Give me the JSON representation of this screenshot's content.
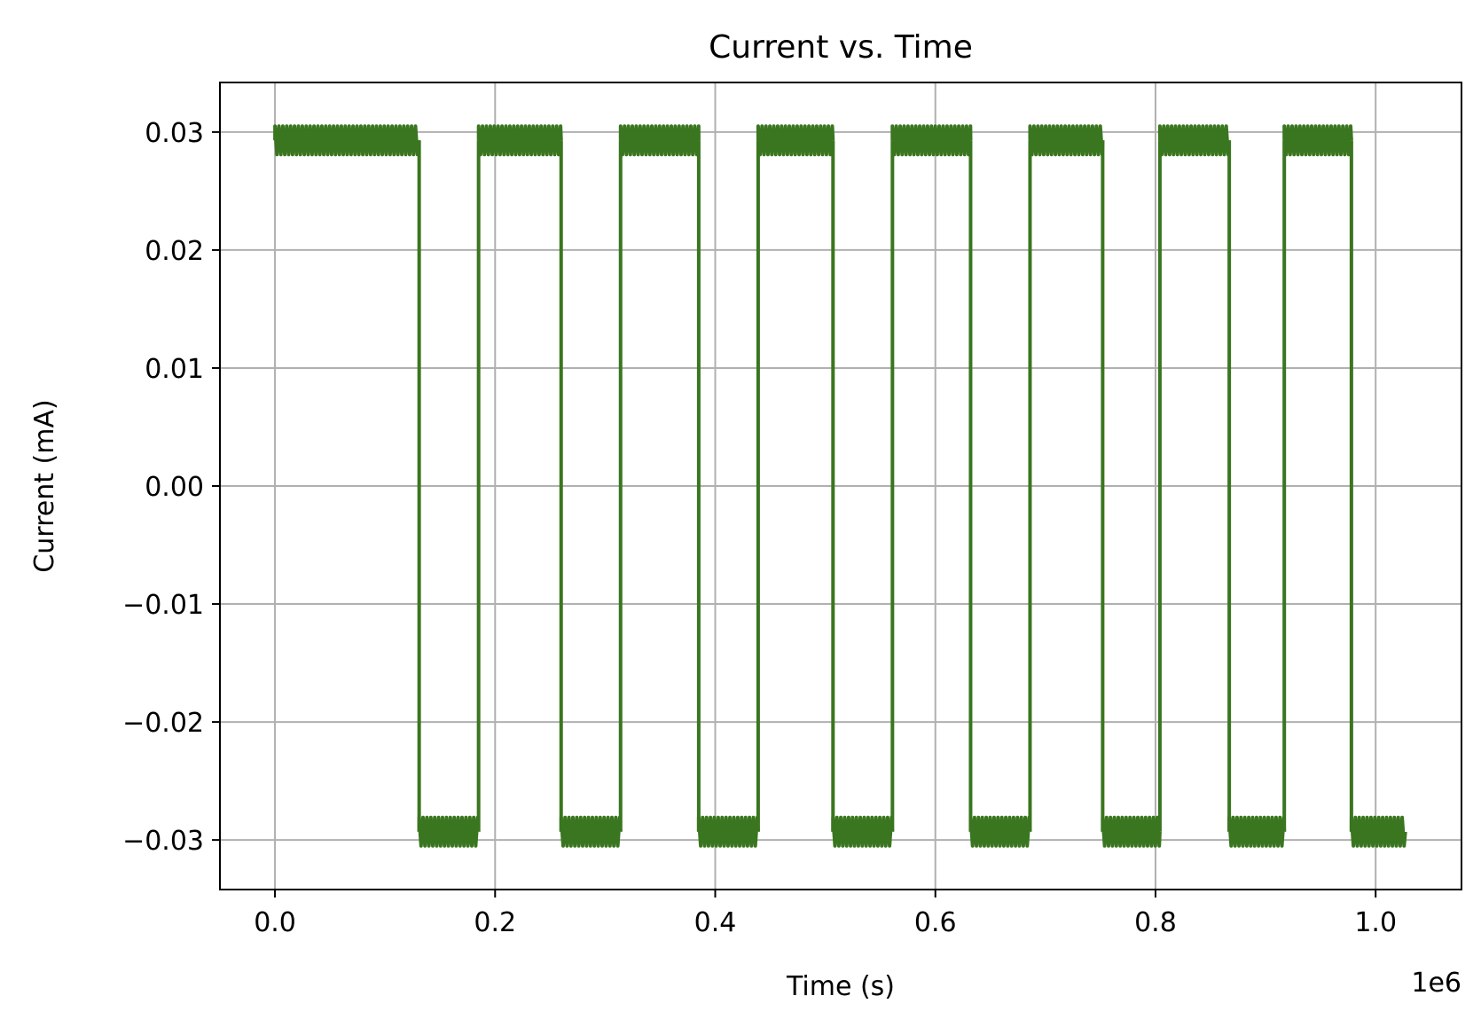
{
  "chart_data": {
    "type": "line",
    "title": "Current vs. Time",
    "xlabel": "Time (s)",
    "ylabel": "Current (mA)",
    "x_offset_label": "1e6",
    "xlim": [
      -50000,
      1078000
    ],
    "ylim": [
      -0.0342,
      0.0342
    ],
    "x_ticks": [
      0.0,
      0.2,
      0.4,
      0.6,
      0.8,
      1.0
    ],
    "x_tick_labels": [
      "0.0",
      "0.2",
      "0.4",
      "0.6",
      "0.8",
      "1.0"
    ],
    "y_ticks": [
      0.03,
      0.02,
      0.01,
      0.0,
      -0.01,
      -0.02,
      -0.03
    ],
    "y_tick_labels": [
      "0.03",
      "0.02",
      "0.01",
      "0.00",
      "−0.01",
      "−0.02",
      "−0.03"
    ],
    "grid": true,
    "line_color": "#3a761f",
    "segments": [
      {
        "x": [
          0,
          131000
        ],
        "y": 0.0293
      },
      {
        "x": [
          131000,
          185000
        ],
        "y": -0.0293
      },
      {
        "x": [
          185000,
          260000
        ],
        "y": 0.0293
      },
      {
        "x": [
          260000,
          314000
        ],
        "y": -0.0293
      },
      {
        "x": [
          314000,
          385000
        ],
        "y": 0.0293
      },
      {
        "x": [
          385000,
          439000
        ],
        "y": -0.0293
      },
      {
        "x": [
          439000,
          507000
        ],
        "y": 0.0293
      },
      {
        "x": [
          507000,
          561000
        ],
        "y": -0.0293
      },
      {
        "x": [
          561000,
          632000
        ],
        "y": 0.0293
      },
      {
        "x": [
          632000,
          686000
        ],
        "y": -0.0293
      },
      {
        "x": [
          686000,
          752000
        ],
        "y": 0.0293
      },
      {
        "x": [
          752000,
          804000
        ],
        "y": -0.0293
      },
      {
        "x": [
          804000,
          867000
        ],
        "y": 0.0293
      },
      {
        "x": [
          867000,
          917000
        ],
        "y": -0.0293
      },
      {
        "x": [
          917000,
          978000
        ],
        "y": 0.0293
      },
      {
        "x": [
          978000,
          1027000
        ],
        "y": -0.0293
      }
    ],
    "noise_amplitude": 0.0012
  }
}
